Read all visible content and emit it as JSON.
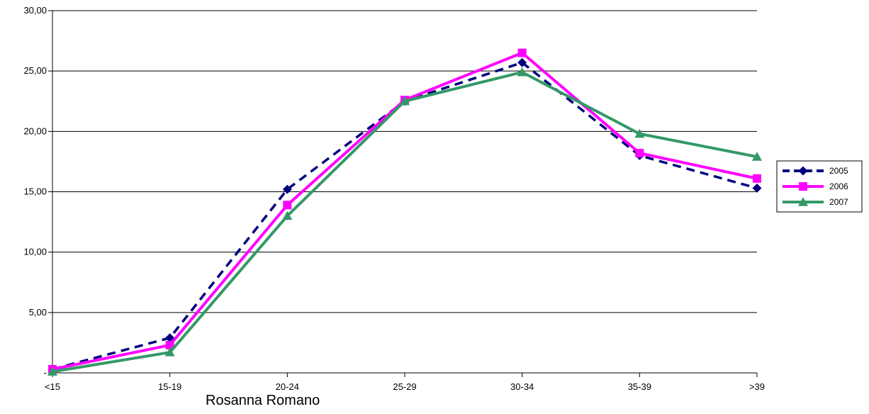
{
  "chart_data": {
    "type": "line",
    "categories": [
      "<15",
      "15-19",
      "20-24",
      "25-29",
      "30-34",
      "35-39",
      ">39"
    ],
    "series": [
      {
        "name": "2005",
        "values": [
          0.3,
          2.9,
          15.2,
          22.5,
          25.7,
          18.0,
          15.3
        ],
        "color": "#000080",
        "dash": "dashed",
        "marker": "diamond"
      },
      {
        "name": "2006",
        "values": [
          0.3,
          2.3,
          13.9,
          22.6,
          26.5,
          18.2,
          16.1
        ],
        "color": "#ff00ff",
        "dash": "solid",
        "marker": "square"
      },
      {
        "name": "2007",
        "values": [
          0.1,
          1.7,
          13.0,
          22.5,
          24.9,
          19.8,
          17.9
        ],
        "color": "#339966",
        "dash": "solid",
        "marker": "triangle"
      }
    ],
    "yticks": [
      "-",
      "5,00",
      "10,00",
      "15,00",
      "20,00",
      "25,00",
      "30,00"
    ],
    "ylim": [
      0,
      30
    ],
    "grid": true,
    "legend_position": "right"
  },
  "caption": "Rosanna Romano"
}
